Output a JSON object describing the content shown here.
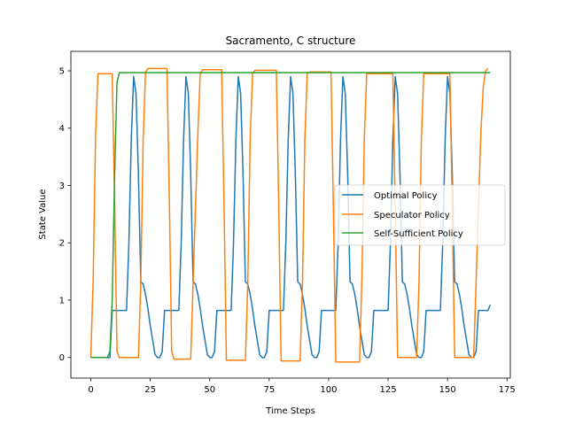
{
  "chart_data": {
    "type": "line",
    "title": "Sacramento, C structure",
    "xlabel": "Time Steps",
    "ylabel": "State Value",
    "xlim": [
      -8.4,
      176.4
    ],
    "ylim": [
      -0.36,
      5.34
    ],
    "xticks": [
      0,
      25,
      50,
      75,
      100,
      125,
      150,
      175
    ],
    "yticks": [
      0,
      1,
      2,
      3,
      4,
      5
    ],
    "grid": false,
    "legend": "center-right",
    "series": [
      {
        "name": "Optimal Policy",
        "color": "#1f77b4",
        "points": [
          [
            0,
            0
          ],
          [
            6,
            0
          ],
          [
            8,
            0
          ],
          [
            9,
            0.82
          ],
          [
            13,
            0.82
          ],
          [
            15,
            0.82
          ],
          [
            16,
            2.0
          ],
          [
            17,
            3.8
          ],
          [
            18,
            4.9
          ],
          [
            19,
            4.6
          ],
          [
            20,
            3.2
          ],
          [
            21,
            1.32
          ],
          [
            22,
            1.28
          ],
          [
            23,
            1.1
          ],
          [
            24,
            0.85
          ],
          [
            25,
            0.55
          ],
          [
            26,
            0.3
          ],
          [
            27,
            0.05
          ],
          [
            28,
            0
          ],
          [
            29,
            0
          ],
          [
            30,
            0.1
          ],
          [
            31,
            0.82
          ],
          [
            35,
            0.82
          ],
          [
            37,
            0.82
          ],
          [
            38,
            2.0
          ],
          [
            39,
            3.8
          ],
          [
            40,
            4.9
          ],
          [
            41,
            4.6
          ],
          [
            42,
            3.2
          ],
          [
            43,
            1.32
          ],
          [
            44,
            1.28
          ],
          [
            45,
            1.1
          ],
          [
            46,
            0.85
          ],
          [
            47,
            0.55
          ],
          [
            48,
            0.3
          ],
          [
            49,
            0.05
          ],
          [
            50,
            0
          ],
          [
            51,
            0
          ],
          [
            52,
            0.1
          ],
          [
            53,
            0.82
          ],
          [
            57,
            0.82
          ],
          [
            59,
            0.82
          ],
          [
            60,
            2.0
          ],
          [
            61,
            3.8
          ],
          [
            62,
            4.9
          ],
          [
            63,
            4.6
          ],
          [
            64,
            3.2
          ],
          [
            65,
            1.32
          ],
          [
            66,
            1.28
          ],
          [
            67,
            1.1
          ],
          [
            68,
            0.85
          ],
          [
            69,
            0.55
          ],
          [
            70,
            0.3
          ],
          [
            71,
            0.05
          ],
          [
            72,
            0
          ],
          [
            73,
            0
          ],
          [
            74,
            0.1
          ],
          [
            75,
            0.82
          ],
          [
            79,
            0.82
          ],
          [
            81,
            0.82
          ],
          [
            82,
            2.0
          ],
          [
            83,
            3.8
          ],
          [
            84,
            4.9
          ],
          [
            85,
            4.6
          ],
          [
            86,
            3.2
          ],
          [
            87,
            1.32
          ],
          [
            88,
            1.28
          ],
          [
            89,
            1.1
          ],
          [
            90,
            0.85
          ],
          [
            91,
            0.55
          ],
          [
            92,
            0.3
          ],
          [
            93,
            0.05
          ],
          [
            94,
            0
          ],
          [
            95,
            0
          ],
          [
            96,
            0.1
          ],
          [
            97,
            0.82
          ],
          [
            101,
            0.82
          ],
          [
            103,
            0.82
          ],
          [
            104,
            2.0
          ],
          [
            105,
            3.8
          ],
          [
            106,
            4.9
          ],
          [
            107,
            4.6
          ],
          [
            108,
            3.2
          ],
          [
            109,
            1.32
          ],
          [
            110,
            1.28
          ],
          [
            111,
            1.1
          ],
          [
            112,
            0.85
          ],
          [
            113,
            0.55
          ],
          [
            114,
            0.3
          ],
          [
            115,
            0.05
          ],
          [
            116,
            0
          ],
          [
            117,
            0
          ],
          [
            118,
            0.1
          ],
          [
            119,
            0.82
          ],
          [
            123,
            0.82
          ],
          [
            125,
            0.82
          ],
          [
            126,
            2.0
          ],
          [
            127,
            3.8
          ],
          [
            128,
            4.9
          ],
          [
            129,
            4.6
          ],
          [
            130,
            3.2
          ],
          [
            131,
            1.32
          ],
          [
            132,
            1.28
          ],
          [
            133,
            1.1
          ],
          [
            134,
            0.85
          ],
          [
            135,
            0.55
          ],
          [
            136,
            0.3
          ],
          [
            137,
            0.05
          ],
          [
            138,
            0
          ],
          [
            139,
            0
          ],
          [
            140,
            0.1
          ],
          [
            141,
            0.82
          ],
          [
            145,
            0.82
          ],
          [
            147,
            0.82
          ],
          [
            148,
            2.0
          ],
          [
            149,
            3.8
          ],
          [
            150,
            4.9
          ],
          [
            151,
            4.6
          ],
          [
            152,
            3.2
          ],
          [
            153,
            1.32
          ],
          [
            154,
            1.28
          ],
          [
            155,
            1.1
          ],
          [
            156,
            0.85
          ],
          [
            157,
            0.55
          ],
          [
            158,
            0.3
          ],
          [
            159,
            0.05
          ],
          [
            160,
            0
          ],
          [
            161,
            0
          ],
          [
            162,
            0.1
          ],
          [
            163,
            0.82
          ],
          [
            167,
            0.82
          ],
          [
            168,
            0.92
          ]
        ]
      },
      {
        "name": "Speculator Policy",
        "color": "#ff7f0e",
        "points": [
          [
            0,
            0
          ],
          [
            1,
            1.4
          ],
          [
            2,
            3.9
          ],
          [
            3,
            4.95
          ],
          [
            9,
            4.95
          ],
          [
            10,
            2.7
          ],
          [
            11,
            0.1
          ],
          [
            12,
            0
          ],
          [
            20,
            0
          ],
          [
            21,
            1.3
          ],
          [
            22,
            3.8
          ],
          [
            23,
            4.98
          ],
          [
            24,
            5.04
          ],
          [
            32,
            5.04
          ],
          [
            33,
            2.8
          ],
          [
            34,
            0.1
          ],
          [
            35,
            -0.03
          ],
          [
            42,
            -0.03
          ],
          [
            43,
            1.3
          ],
          [
            44,
            2.6
          ],
          [
            45,
            3.9
          ],
          [
            46,
            4.95
          ],
          [
            47,
            5.02
          ],
          [
            55,
            5.02
          ],
          [
            56,
            2.7
          ],
          [
            57,
            -0.05
          ],
          [
            65,
            -0.05
          ],
          [
            66,
            1.3
          ],
          [
            67,
            3.8
          ],
          [
            68,
            4.95
          ],
          [
            69,
            5.01
          ],
          [
            78,
            5.01
          ],
          [
            79,
            2.7
          ],
          [
            80,
            -0.06
          ],
          [
            88,
            -0.06
          ],
          [
            89,
            1.3
          ],
          [
            90,
            3.8
          ],
          [
            91,
            4.95
          ],
          [
            92,
            4.98
          ],
          [
            101,
            4.98
          ],
          [
            102,
            2.6
          ],
          [
            103,
            -0.08
          ],
          [
            113,
            -0.08
          ],
          [
            114,
            1.4
          ],
          [
            115,
            3.8
          ],
          [
            116,
            4.95
          ],
          [
            127,
            4.95
          ],
          [
            128,
            2.6
          ],
          [
            129,
            0
          ],
          [
            137,
            0
          ],
          [
            138,
            1.3
          ],
          [
            139,
            3.8
          ],
          [
            140,
            4.95
          ],
          [
            151,
            4.95
          ],
          [
            152,
            2.6
          ],
          [
            153,
            0
          ],
          [
            161,
            0
          ],
          [
            162,
            1.3
          ],
          [
            163,
            2.6
          ],
          [
            164,
            3.9
          ],
          [
            165,
            4.7
          ],
          [
            166,
            5.0
          ],
          [
            167,
            5.04
          ]
        ]
      },
      {
        "name": "Self-Sufficient Policy",
        "color": "#2ca02c",
        "points": [
          [
            0,
            0
          ],
          [
            7,
            0
          ],
          [
            8,
            0.1
          ],
          [
            9,
            1.0
          ],
          [
            10,
            3.2
          ],
          [
            11,
            4.8
          ],
          [
            12,
            4.97
          ],
          [
            168,
            4.97
          ]
        ]
      }
    ]
  }
}
